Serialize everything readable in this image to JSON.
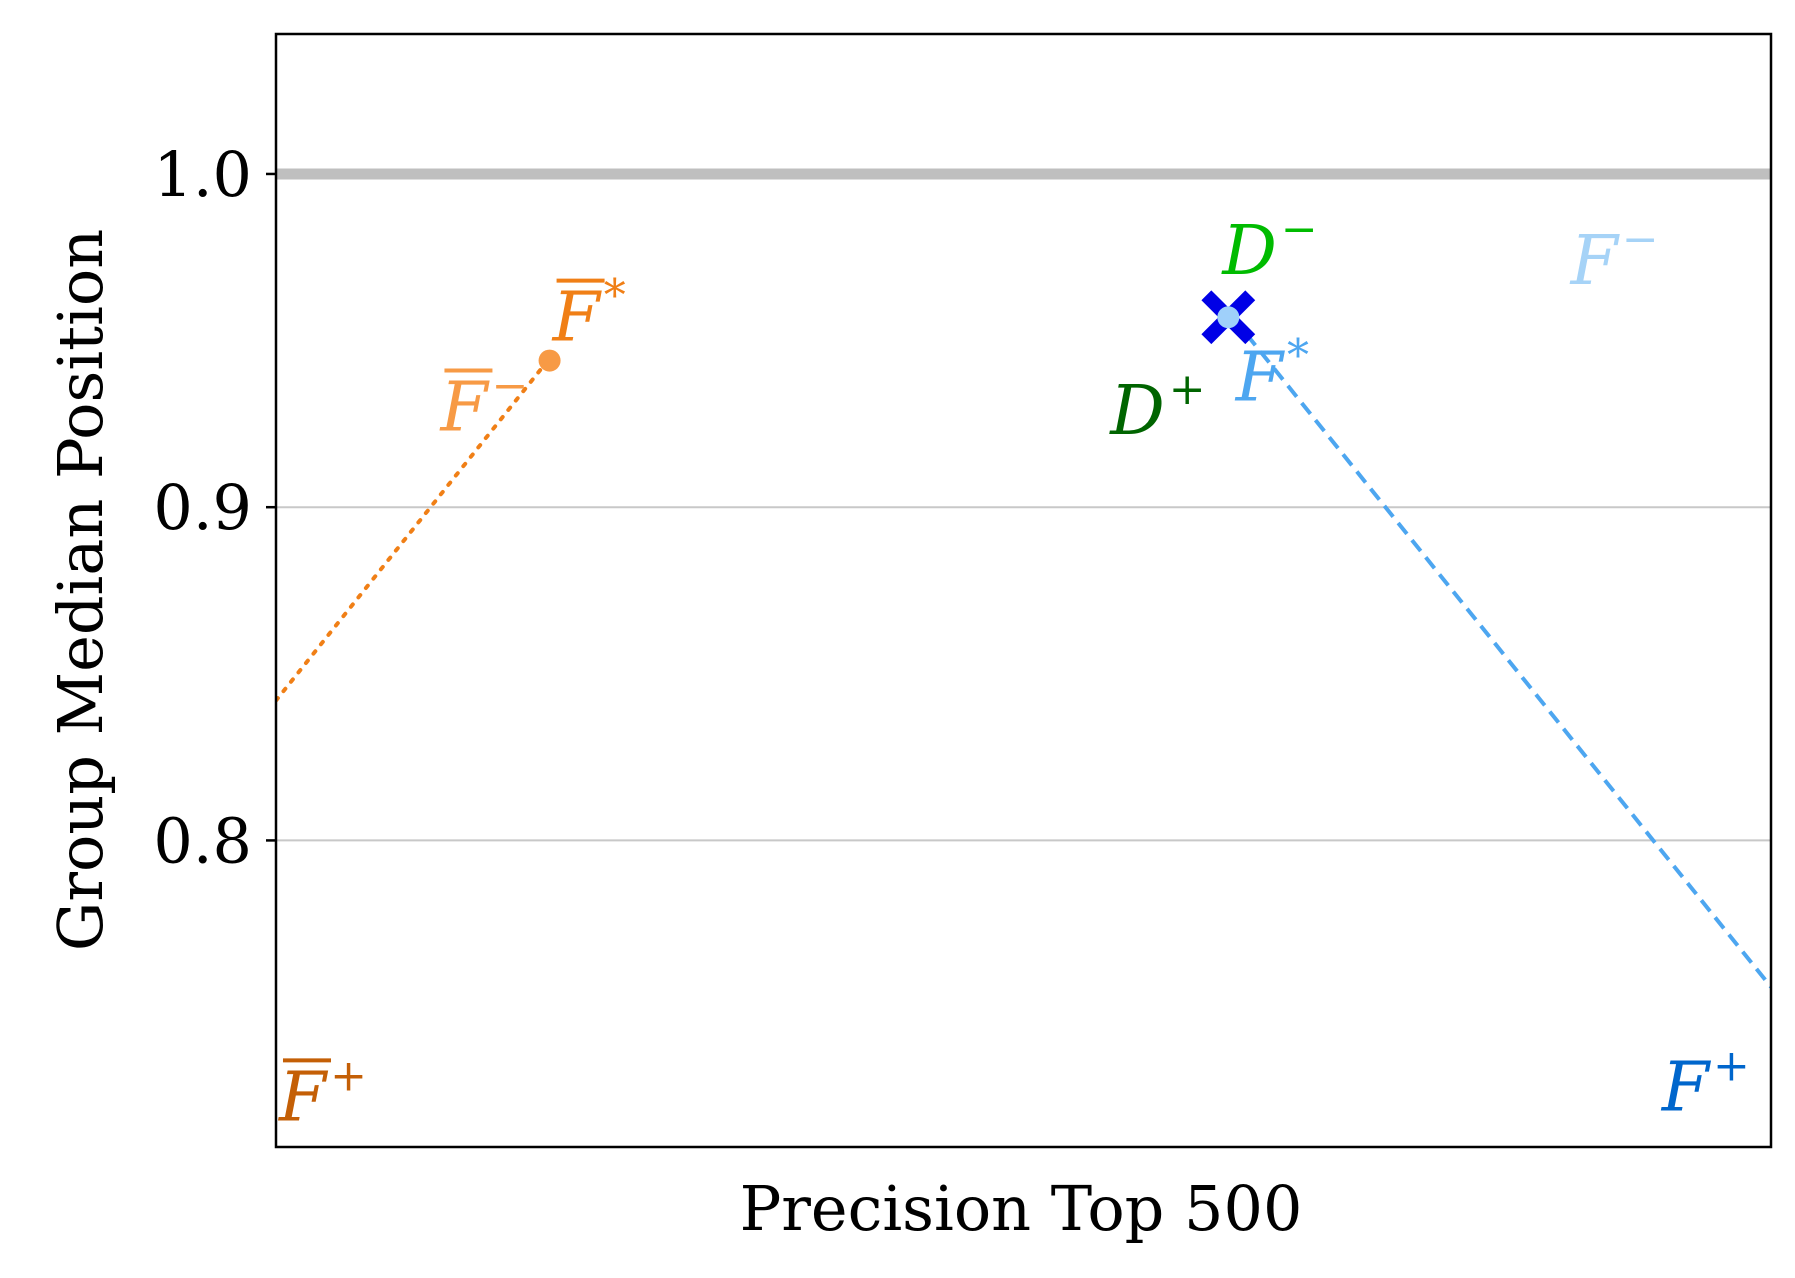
{
  "chart_data": {
    "type": "scatter",
    "xlabel": "Precision Top 500",
    "ylabel": "Group Median Position",
    "ylim": [
      0.708,
      1.042
    ],
    "xlim": [
      0,
      1
    ],
    "x_tick_labels": [],
    "y_ticks": [
      {
        "value": 0.8,
        "label": "0.8"
      },
      {
        "value": 0.9,
        "label": "0.9"
      },
      {
        "value": 1.0,
        "label": "1.0"
      }
    ],
    "reference_line": {
      "y": 1.0,
      "color": "#bfbfbf"
    },
    "grid": "horizontal",
    "series": [
      {
        "style": "dotted",
        "color": "#f07f16",
        "points": [
          {
            "x": 0.0,
            "y": 0.842
          },
          {
            "x": 0.18,
            "y": 0.943
          }
        ]
      },
      {
        "style": "dashed",
        "color": "#4da6f0",
        "points": [
          {
            "x": 0.64,
            "y": 0.957
          },
          {
            "x": 1.0,
            "y": 0.756
          }
        ]
      }
    ],
    "markers": [
      {
        "shape": "circle",
        "color": "#f79a45",
        "x": 0.183,
        "y": 0.944
      },
      {
        "shape": "x",
        "color": "#0000e6",
        "x": 0.637,
        "y": 0.957
      },
      {
        "shape": "circle",
        "color": "#9fd0fa",
        "x": 0.637,
        "y": 0.957
      }
    ],
    "annotations": [
      {
        "base": "F",
        "sup": "*",
        "overline": true,
        "color": "#f07f16",
        "x": 0.185,
        "y": 0.95
      },
      {
        "base": "F",
        "sup": "−",
        "overline": true,
        "color": "#f79a45",
        "x": 0.11,
        "y": 0.923
      },
      {
        "base": "F",
        "sup": "+",
        "overline": true,
        "color": "#c45f06",
        "x": 0.002,
        "y": 0.716
      },
      {
        "base": "D",
        "sup": "−",
        "overline": false,
        "color": "#00bb00",
        "x": 0.633,
        "y": 0.97
      },
      {
        "base": "D",
        "sup": "+",
        "overline": false,
        "color": "#006400",
        "x": 0.558,
        "y": 0.922
      },
      {
        "base": "F",
        "sup": "*",
        "overline": false,
        "color": "#4da6f0",
        "x": 0.642,
        "y": 0.932
      },
      {
        "base": "F",
        "sup": "−",
        "overline": false,
        "color": "#a6d3f7",
        "x": 0.866,
        "y": 0.967
      },
      {
        "base": "F",
        "sup": "+",
        "overline": false,
        "color": "#0066cc",
        "x": 0.927,
        "y": 0.719
      }
    ]
  }
}
